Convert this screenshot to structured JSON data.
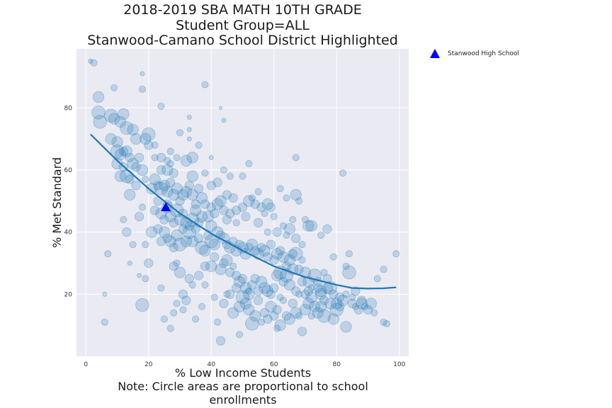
{
  "chart_data": {
    "type": "scatter",
    "title_lines": [
      "2018-2019 SBA MATH 10TH GRADE",
      "Student Group=ALL",
      "Stanwood-Camano School District Highlighted"
    ],
    "xlabel": "% Low Income Students",
    "ylabel": "% Met Standard",
    "note": "Note: Circle areas are proportional to school enrollments",
    "xlim": [
      -3,
      103
    ],
    "ylim": [
      0,
      99
    ],
    "xticks": [
      0,
      20,
      40,
      60,
      80,
      100
    ],
    "yticks": [
      20,
      40,
      60,
      80
    ],
    "grid": true,
    "colors": {
      "background": "#eaeaf2",
      "points": "#1f77b4",
      "highlight": "#0000ff"
    },
    "highlight": {
      "name": "Stanwood High School",
      "x": 25.5,
      "y": 48,
      "marker": "triangle",
      "legend_position": "outside-right-top"
    },
    "trend": {
      "name": "",
      "x": [
        1.5,
        10,
        20,
        30,
        40,
        50,
        60,
        70,
        80,
        85,
        90,
        95,
        99
      ],
      "y": [
        71.5,
        63,
        54,
        46,
        39.5,
        34,
        29,
        25.5,
        23,
        22,
        21.8,
        21.9,
        22.2
      ]
    },
    "points": [
      [
        1.5,
        95,
        2
      ],
      [
        2.5,
        94.5,
        3
      ],
      [
        4,
        83.5,
        5
      ],
      [
        9,
        86.5,
        3
      ],
      [
        18,
        86,
        3
      ],
      [
        18,
        91,
        2
      ],
      [
        24,
        80.5,
        3
      ],
      [
        38,
        87.5,
        3
      ],
      [
        43,
        80,
        1.5
      ],
      [
        44,
        76,
        2
      ],
      [
        33,
        77,
        2
      ],
      [
        33,
        73,
        2
      ],
      [
        4,
        78.5,
        6
      ],
      [
        4.5,
        75.5,
        6
      ],
      [
        8,
        77.5,
        6
      ],
      [
        9,
        76.5,
        5
      ],
      [
        11,
        75.5,
        5
      ],
      [
        12,
        78,
        5
      ],
      [
        13,
        73.5,
        6
      ],
      [
        15,
        73,
        5
      ],
      [
        16,
        70,
        5
      ],
      [
        8,
        70,
        5
      ],
      [
        10,
        69,
        5
      ],
      [
        10,
        66,
        6
      ],
      [
        11,
        65,
        5
      ],
      [
        12,
        66,
        4
      ],
      [
        13,
        66,
        5
      ],
      [
        14,
        64,
        4
      ],
      [
        15,
        62,
        5
      ],
      [
        16,
        61,
        4
      ],
      [
        17,
        64,
        4
      ],
      [
        18,
        60,
        5
      ],
      [
        19,
        70,
        5
      ],
      [
        20,
        71.5,
        6
      ],
      [
        20,
        68,
        4
      ],
      [
        22,
        68,
        3
      ],
      [
        22,
        64,
        3
      ],
      [
        24,
        64,
        4
      ],
      [
        24,
        60,
        4
      ],
      [
        26,
        60,
        5
      ],
      [
        28,
        59,
        4
      ],
      [
        26,
        63,
        3
      ],
      [
        27,
        66,
        3
      ],
      [
        29,
        64,
        3
      ],
      [
        32,
        63,
        5
      ],
      [
        34,
        64,
        5
      ],
      [
        30,
        72,
        3
      ],
      [
        27,
        62,
        3
      ],
      [
        33,
        70,
        2
      ],
      [
        10,
        62,
        5
      ],
      [
        11,
        58,
        5
      ],
      [
        12,
        61,
        4
      ],
      [
        13,
        58,
        6
      ],
      [
        14,
        57,
        4
      ],
      [
        14,
        52,
        5
      ],
      [
        16,
        55,
        4
      ],
      [
        18,
        48,
        3
      ],
      [
        17,
        45,
        4
      ],
      [
        21,
        54,
        5
      ],
      [
        22,
        57,
        5
      ],
      [
        23,
        55,
        4
      ],
      [
        24,
        54,
        6
      ],
      [
        25,
        55,
        5
      ],
      [
        26,
        53,
        5
      ],
      [
        27,
        56,
        4
      ],
      [
        28,
        52,
        5
      ],
      [
        29,
        54,
        5
      ],
      [
        30,
        50,
        4
      ],
      [
        31,
        52,
        5
      ],
      [
        32,
        53,
        5
      ],
      [
        33,
        55,
        4
      ],
      [
        34,
        58,
        5
      ],
      [
        34,
        52,
        5
      ],
      [
        35,
        49,
        4
      ],
      [
        36,
        54,
        4
      ],
      [
        37,
        51,
        5
      ],
      [
        22,
        47,
        4
      ],
      [
        23,
        50,
        4
      ],
      [
        24,
        46,
        5
      ],
      [
        25,
        44,
        4
      ],
      [
        26,
        48,
        5
      ],
      [
        27,
        45,
        5
      ],
      [
        28,
        43,
        4
      ],
      [
        29,
        47,
        6
      ],
      [
        30,
        44,
        5
      ],
      [
        31,
        46,
        4
      ],
      [
        32,
        43,
        5
      ],
      [
        33,
        42,
        4
      ],
      [
        34,
        44,
        6
      ],
      [
        35,
        47,
        5
      ],
      [
        36,
        43,
        4
      ],
      [
        37,
        45,
        5
      ],
      [
        38,
        49,
        4
      ],
      [
        39,
        45,
        5
      ],
      [
        40,
        48,
        4
      ],
      [
        40,
        42,
        5
      ],
      [
        41,
        46,
        4
      ],
      [
        42,
        49,
        5
      ],
      [
        43,
        50,
        5
      ],
      [
        44,
        47,
        4
      ],
      [
        45,
        44,
        4
      ],
      [
        46,
        46,
        4
      ],
      [
        47,
        51,
        4
      ],
      [
        48,
        47,
        4
      ],
      [
        48,
        43,
        3
      ],
      [
        50,
        48,
        4
      ],
      [
        51,
        45,
        4
      ],
      [
        52,
        50,
        5
      ],
      [
        53,
        51,
        3
      ],
      [
        54,
        49,
        4
      ],
      [
        55,
        53,
        3
      ],
      [
        56,
        48,
        4
      ],
      [
        57,
        46,
        3
      ],
      [
        58,
        49,
        5
      ],
      [
        59,
        48,
        4
      ],
      [
        60,
        45,
        3
      ],
      [
        61,
        40,
        4
      ],
      [
        63,
        42,
        3
      ],
      [
        65,
        41,
        5
      ],
      [
        66,
        44,
        3
      ],
      [
        67,
        52,
        5
      ],
      [
        68,
        50,
        3
      ],
      [
        70,
        44,
        3
      ],
      [
        71,
        42,
        5
      ],
      [
        21,
        40,
        5
      ],
      [
        23,
        41,
        4
      ],
      [
        24,
        37,
        4
      ],
      [
        25,
        40,
        5
      ],
      [
        26,
        38,
        4
      ],
      [
        27,
        37,
        5
      ],
      [
        28,
        35,
        4
      ],
      [
        29,
        39,
        5
      ],
      [
        30,
        36,
        6
      ],
      [
        31,
        41,
        4
      ],
      [
        32,
        37,
        5
      ],
      [
        33,
        40,
        6
      ],
      [
        34,
        37,
        5
      ],
      [
        35,
        41,
        4
      ],
      [
        36,
        38,
        4
      ],
      [
        37,
        35,
        6
      ],
      [
        38,
        34,
        5
      ],
      [
        39,
        39,
        4
      ],
      [
        40,
        37,
        6
      ],
      [
        41,
        36,
        5
      ],
      [
        42,
        40,
        5
      ],
      [
        43,
        39,
        4
      ],
      [
        44,
        38,
        5
      ],
      [
        45,
        36,
        4
      ],
      [
        46,
        35,
        5
      ],
      [
        47,
        37,
        4
      ],
      [
        48,
        34,
        5
      ],
      [
        49,
        36,
        4
      ],
      [
        50,
        35,
        5
      ],
      [
        51,
        33,
        5
      ],
      [
        52,
        35,
        4
      ],
      [
        53,
        36,
        5
      ],
      [
        54,
        34,
        4
      ],
      [
        55,
        33,
        5
      ],
      [
        56,
        35,
        4
      ],
      [
        57,
        34,
        5
      ],
      [
        58,
        32,
        4
      ],
      [
        59,
        36,
        4
      ],
      [
        60,
        31,
        4
      ],
      [
        61,
        33,
        5
      ],
      [
        62,
        34,
        4
      ],
      [
        63,
        32,
        5
      ],
      [
        64,
        29,
        4
      ],
      [
        65,
        31,
        5
      ],
      [
        66,
        33,
        4
      ],
      [
        67,
        33,
        6
      ],
      [
        68,
        28,
        4
      ],
      [
        69,
        31,
        3
      ],
      [
        70,
        27,
        5
      ],
      [
        71,
        24,
        5
      ],
      [
        72,
        22,
        3
      ],
      [
        74,
        22,
        4
      ],
      [
        75,
        21,
        5
      ],
      [
        76,
        27,
        3
      ],
      [
        77,
        25,
        4
      ],
      [
        13,
        40,
        4
      ],
      [
        15,
        36,
        3
      ],
      [
        19,
        36,
        3
      ],
      [
        20,
        30,
        4
      ],
      [
        28,
        29,
        4
      ],
      [
        30,
        27,
        5
      ],
      [
        33,
        25,
        4
      ],
      [
        34,
        23,
        3
      ],
      [
        36,
        26,
        4
      ],
      [
        38,
        29,
        4
      ],
      [
        40,
        29,
        5
      ],
      [
        41,
        32,
        4
      ],
      [
        43,
        28,
        5
      ],
      [
        44,
        30,
        4
      ],
      [
        45,
        31,
        5
      ],
      [
        46,
        27,
        4
      ],
      [
        47,
        29,
        3
      ],
      [
        48,
        26,
        4
      ],
      [
        49,
        24,
        5
      ],
      [
        50,
        25,
        4
      ],
      [
        51,
        22,
        5
      ],
      [
        52,
        20,
        5
      ],
      [
        53,
        23,
        4
      ],
      [
        54,
        25,
        4
      ],
      [
        55,
        21,
        4
      ],
      [
        56,
        24,
        5
      ],
      [
        57,
        22,
        5
      ],
      [
        58,
        21,
        5
      ],
      [
        59,
        20,
        4
      ],
      [
        60,
        22,
        4
      ],
      [
        61,
        26,
        5
      ],
      [
        62,
        27,
        6
      ],
      [
        63,
        24,
        4
      ],
      [
        64,
        26,
        6
      ],
      [
        65,
        23,
        5
      ],
      [
        66,
        28,
        5
      ],
      [
        67,
        21,
        4
      ],
      [
        68,
        20,
        3
      ],
      [
        69,
        24,
        4
      ],
      [
        70,
        20,
        4
      ],
      [
        71,
        21,
        4
      ],
      [
        72,
        19,
        5
      ],
      [
        73,
        26,
        6
      ],
      [
        74,
        24,
        4
      ],
      [
        75,
        20,
        5
      ],
      [
        76,
        18,
        4
      ],
      [
        77,
        22,
        5
      ],
      [
        78,
        22,
        6
      ],
      [
        79,
        20,
        4
      ],
      [
        80,
        17,
        5
      ],
      [
        81,
        19,
        4
      ],
      [
        82,
        18,
        5
      ],
      [
        83,
        20,
        3
      ],
      [
        84,
        27,
        6
      ],
      [
        85,
        19,
        3
      ],
      [
        86,
        21,
        4
      ],
      [
        88,
        18,
        4
      ],
      [
        90,
        15,
        4
      ],
      [
        91,
        17,
        5
      ],
      [
        92,
        14,
        3
      ],
      [
        18,
        16.5,
        6
      ],
      [
        25,
        12,
        3
      ],
      [
        28,
        14,
        3
      ],
      [
        29,
        17,
        3
      ],
      [
        32,
        18,
        4
      ],
      [
        37,
        16,
        3
      ],
      [
        41,
        19,
        3
      ],
      [
        44,
        17,
        4
      ],
      [
        46,
        20,
        4
      ],
      [
        47,
        14,
        5
      ],
      [
        48,
        22,
        4
      ],
      [
        49,
        16,
        5
      ],
      [
        50,
        19,
        6
      ],
      [
        51,
        17,
        5
      ],
      [
        52,
        15,
        5
      ],
      [
        53,
        10.5,
        6
      ],
      [
        54,
        13,
        5
      ],
      [
        55,
        18,
        4
      ],
      [
        56,
        11,
        3
      ],
      [
        57,
        14,
        4
      ],
      [
        58,
        12,
        4
      ],
      [
        59,
        16,
        5
      ],
      [
        60,
        13,
        4
      ],
      [
        61,
        15,
        4
      ],
      [
        62,
        10,
        5
      ],
      [
        63,
        18,
        3
      ],
      [
        64,
        13,
        4
      ],
      [
        65,
        12,
        5
      ],
      [
        66,
        17,
        4
      ],
      [
        67,
        14,
        5
      ],
      [
        68,
        13,
        3
      ],
      [
        69,
        8,
        4
      ],
      [
        70,
        15,
        5
      ],
      [
        71,
        17,
        5
      ],
      [
        72,
        13,
        3
      ],
      [
        73,
        16,
        5
      ],
      [
        74,
        14,
        5
      ],
      [
        75,
        16,
        5
      ],
      [
        76,
        13,
        6
      ],
      [
        78,
        17,
        5
      ],
      [
        79,
        12,
        5
      ],
      [
        80,
        15,
        6
      ],
      [
        81,
        16,
        4
      ],
      [
        83,
        9.5,
        5
      ],
      [
        85,
        17,
        4
      ],
      [
        86,
        16,
        3
      ],
      [
        87,
        15,
        4
      ],
      [
        88,
        17,
        5
      ],
      [
        89,
        16,
        3
      ],
      [
        95,
        11,
        3
      ],
      [
        96,
        10.5,
        3
      ],
      [
        6,
        20,
        2
      ],
      [
        6,
        11,
        3
      ],
      [
        7,
        33,
        3
      ],
      [
        14,
        30,
        2
      ],
      [
        17,
        26,
        2
      ],
      [
        19,
        25,
        3
      ],
      [
        24,
        22,
        3
      ],
      [
        29,
        30,
        3
      ],
      [
        31,
        20,
        4
      ],
      [
        27,
        9,
        3
      ],
      [
        31,
        15,
        3
      ],
      [
        35,
        12,
        3
      ],
      [
        38,
        23,
        3
      ],
      [
        42,
        11,
        3
      ],
      [
        43,
        5,
        4
      ],
      [
        45,
        20,
        3
      ],
      [
        49,
        7,
        3
      ],
      [
        52,
        21,
        3
      ],
      [
        55,
        43,
        4
      ],
      [
        58,
        40,
        3
      ],
      [
        61,
        9,
        3
      ],
      [
        62,
        19,
        3
      ],
      [
        64,
        39,
        3
      ],
      [
        67,
        38,
        4
      ],
      [
        69,
        36,
        3
      ],
      [
        72,
        42,
        5
      ],
      [
        75,
        39,
        3
      ],
      [
        77,
        41,
        4
      ],
      [
        79,
        32,
        3
      ],
      [
        82,
        59,
        3
      ],
      [
        83,
        29,
        3
      ],
      [
        84,
        33,
        3
      ],
      [
        93,
        25,
        3
      ],
      [
        95,
        28,
        3
      ],
      [
        99,
        33,
        3
      ],
      [
        50,
        58,
        3
      ],
      [
        42,
        56,
        4
      ],
      [
        44,
        60,
        3
      ],
      [
        45,
        52,
        4
      ],
      [
        38,
        59,
        3
      ],
      [
        52,
        62,
        3
      ],
      [
        62,
        54,
        3
      ],
      [
        64,
        51,
        3
      ],
      [
        67,
        64,
        3
      ],
      [
        36,
        68,
        3
      ],
      [
        40,
        64,
        2
      ],
      [
        26,
        49,
        4
      ],
      [
        19,
        57,
        3
      ],
      [
        12,
        44,
        3
      ],
      [
        46,
        58,
        3
      ],
      [
        40,
        55,
        4
      ]
    ]
  }
}
